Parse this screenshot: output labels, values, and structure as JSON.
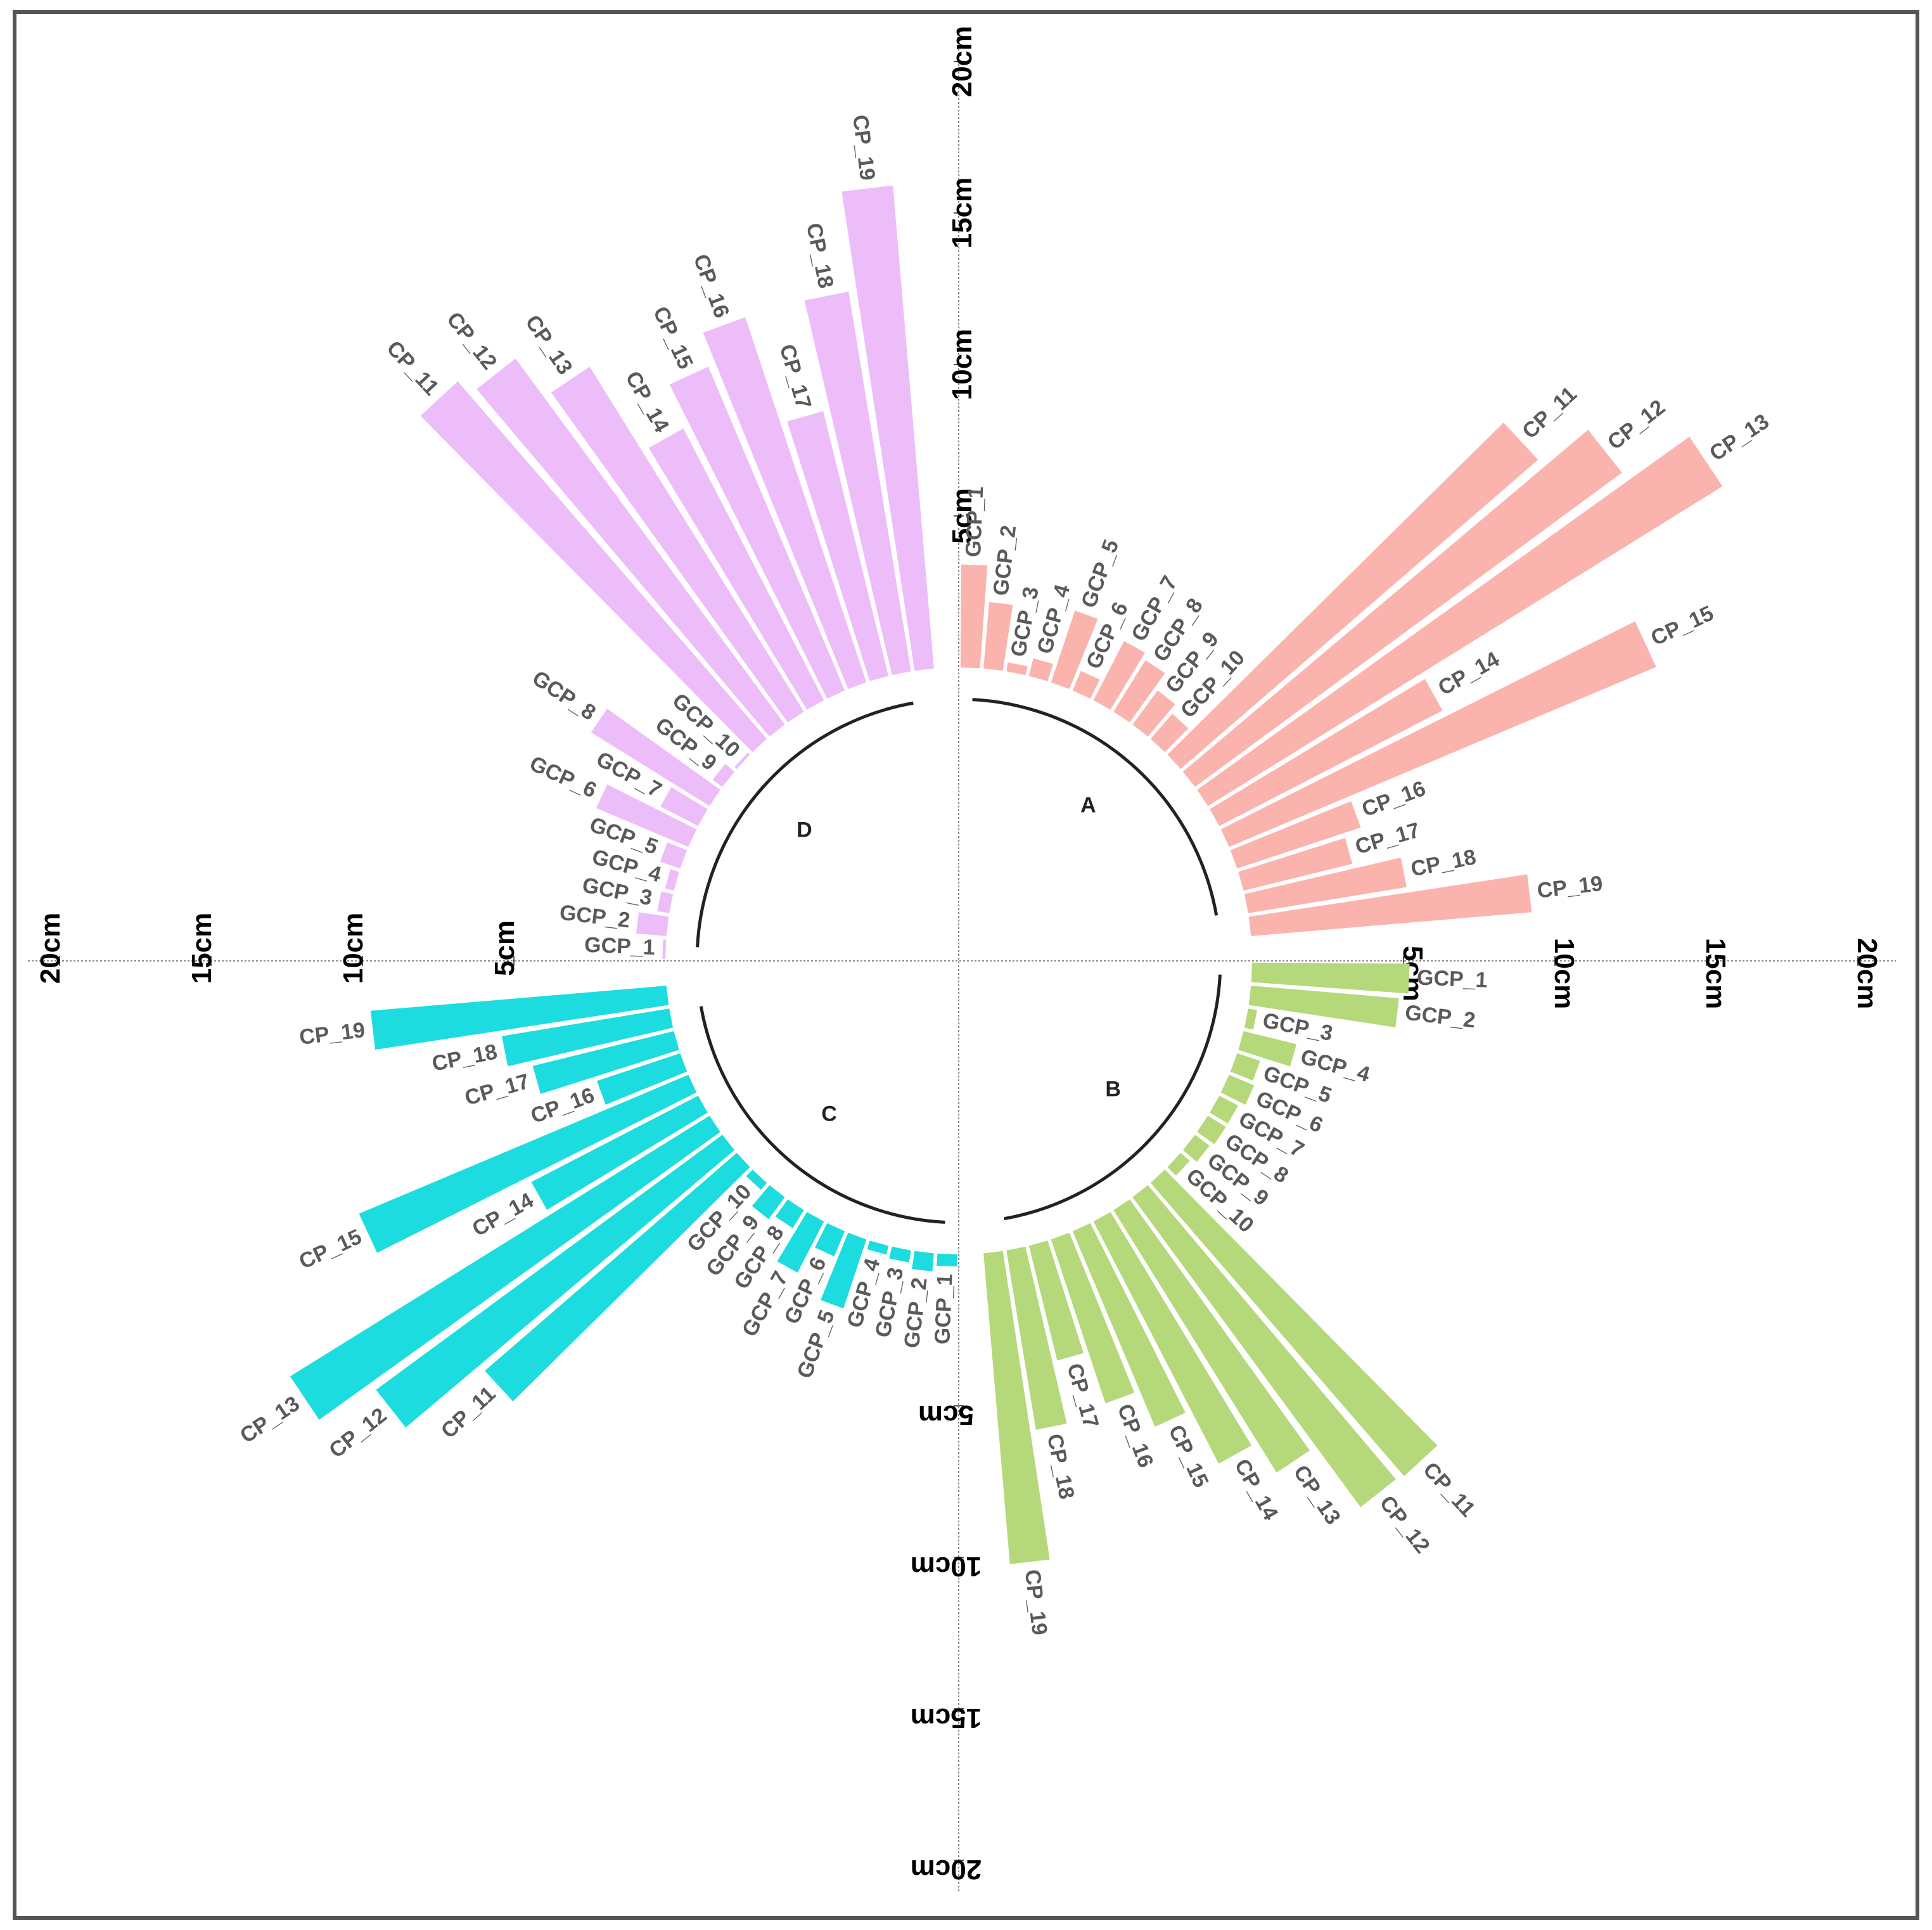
{
  "chart_data": {
    "type": "circular-bar",
    "title": "",
    "unit": "cm",
    "radial_axis": {
      "min": 0,
      "max": 20,
      "ticks": [
        5,
        10,
        15,
        20
      ],
      "tick_labels": [
        "5cm",
        "10cm",
        "15cm",
        "20cm"
      ]
    },
    "groups": [
      {
        "name": "A",
        "color": "#fbb3ae",
        "categories": [
          "GCP_1",
          "GCP_2",
          "GCP_3",
          "GCP_4",
          "GCP_5",
          "GCP_6",
          "GCP_7",
          "GCP_8",
          "GCP_9",
          "GCP_10",
          "CP_11",
          "CP_12",
          "CP_13",
          "CP_14",
          "CP_15",
          "CP_16",
          "CP_17",
          "CP_18",
          "CP_19"
        ],
        "values": [
          3.4,
          2.2,
          0.3,
          0.6,
          2.5,
          0.7,
          2.2,
          2.0,
          1.4,
          1.1,
          15.6,
          17.5,
          20.0,
          8.3,
          15.3,
          4.3,
          3.7,
          5.3,
          9.3
        ]
      },
      {
        "name": "B",
        "color": "#b5d87a",
        "categories": [
          "GCP_1",
          "GCP_2",
          "GCP_3",
          "GCP_4",
          "GCP_5",
          "GCP_6",
          "GCP_7",
          "GCP_8",
          "GCP_9",
          "GCP_10",
          "CP_11",
          "CP_12",
          "CP_13",
          "CP_14",
          "CP_15",
          "CP_16",
          "CP_17",
          "CP_18",
          "CP_19"
        ],
        "values": [
          5.2,
          4.9,
          0.3,
          1.8,
          0.8,
          0.9,
          0.7,
          0.7,
          0.6,
          0.4,
          12.8,
          12.7,
          10.2,
          9.0,
          7.0,
          5.7,
          3.9,
          6.0,
          10.3
        ]
      },
      {
        "name": "C",
        "color": "#1cdcdf",
        "categories": [
          "GCP_1",
          "GCP_2",
          "GCP_3",
          "GCP_4",
          "GCP_5",
          "GCP_6",
          "GCP_7",
          "GCP_8",
          "GCP_9",
          "GCP_10",
          "CP_11",
          "CP_12",
          "CP_13",
          "CP_14",
          "CP_15",
          "CP_16",
          "CP_17",
          "CP_18",
          "CP_19"
        ],
        "values": [
          0.4,
          0.6,
          0.4,
          0.3,
          2.4,
          0.9,
          1.9,
          0.7,
          0.9,
          0.3,
          11.0,
          14.2,
          16.3,
          6.2,
          11.8,
          2.9,
          4.8,
          5.6,
          9.8
        ]
      },
      {
        "name": "D",
        "color": "#edbdfa",
        "categories": [
          "GCP_1",
          "GCP_2",
          "GCP_3",
          "GCP_4",
          "GCP_5",
          "GCP_6",
          "GCP_7",
          "GCP_8",
          "GCP_9",
          "GCP_10",
          "CP_11",
          "CP_12",
          "CP_13",
          "CP_14",
          "CP_15",
          "CP_16",
          "CP_17",
          "CP_18",
          "CP_19"
        ],
        "values": [
          0.1,
          1.0,
          0.4,
          0.3,
          0.7,
          3.3,
          1.4,
          4.6,
          0.4,
          0.1,
          15.6,
          15.0,
          13.4,
          10.1,
          11.6,
          12.7,
          9.0,
          12.7,
          16.0
        ]
      }
    ]
  }
}
